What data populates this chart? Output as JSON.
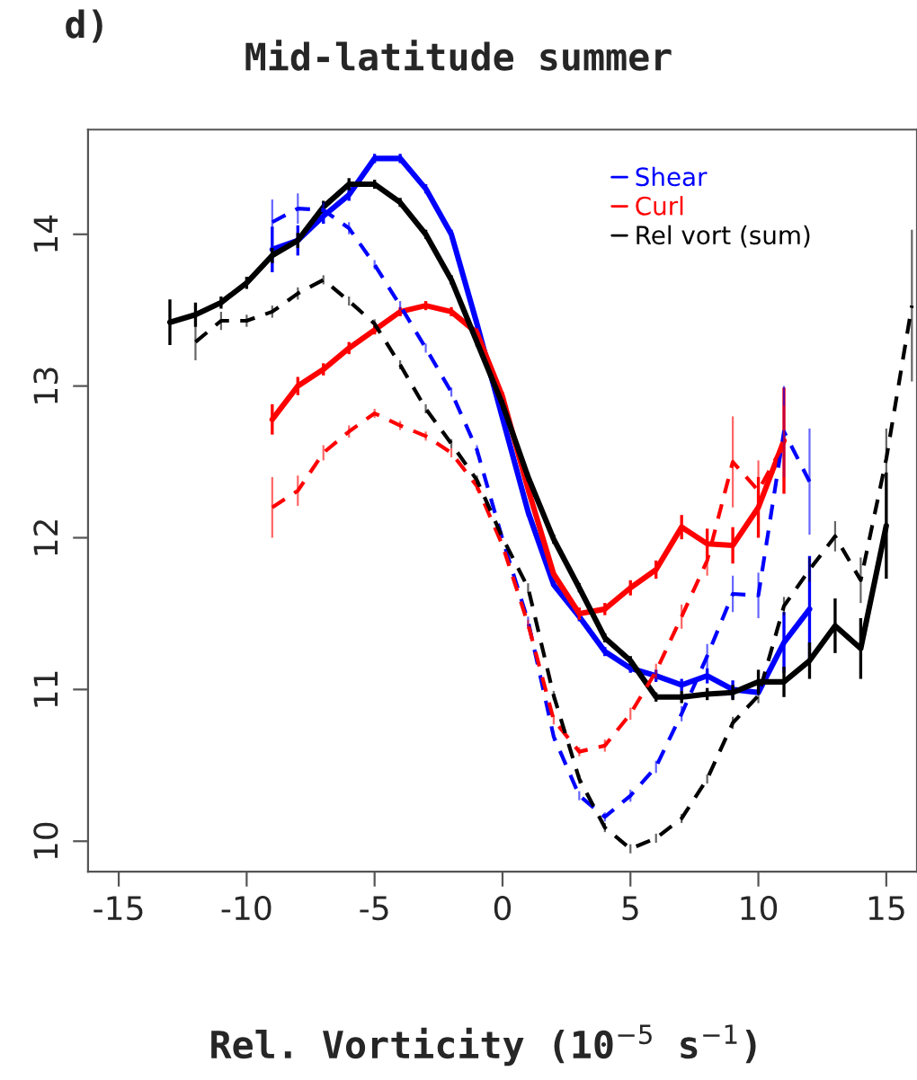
{
  "chart_data": {
    "type": "line",
    "title": "Mid-latitude summer",
    "subtitle": "d)",
    "xlabel": "Rel. Vorticity (10$^{−5}$ s$^{−1}$)",
    "xlim": [
      -16.2,
      16.2
    ],
    "ylim": [
      9.8,
      14.69
    ],
    "xticks": [
      -15,
      -10,
      -5,
      0,
      5,
      10,
      15
    ],
    "yticks": [
      10,
      11,
      12,
      13,
      14
    ],
    "grid": false,
    "legend": "top right",
    "marker": "none",
    "series": [
      {
        "name": "Shear",
        "color": "#0000ff",
        "line_style": "solid",
        "x": [
          -9,
          -8,
          -7,
          -6,
          -5,
          -4,
          -3,
          -2,
          -1,
          0,
          1,
          2,
          3,
          4,
          5,
          6,
          7,
          8,
          9,
          10,
          11,
          12
        ],
        "values": [
          13.9,
          13.96,
          14.12,
          14.26,
          14.5,
          14.5,
          14.3,
          14.0,
          13.41,
          12.79,
          12.17,
          11.69,
          11.48,
          11.25,
          11.14,
          11.09,
          11.03,
          11.09,
          11.0,
          10.98,
          11.31,
          11.53
        ],
        "errors": [
          0.15,
          0.1,
          0.05,
          0.04,
          0.03,
          0.03,
          0.03,
          0.03,
          0.03,
          0.03,
          0.03,
          null,
          0.03,
          0.03,
          0.03,
          0.04,
          0.04,
          0.05,
          0.06,
          null,
          0.2,
          0.35
        ]
      },
      {
        "name": "Curl",
        "color": "#ff0000",
        "line_style": "solid",
        "x": [
          -9,
          -8,
          -7,
          -6,
          -5,
          -4,
          -3,
          -2,
          -1,
          0,
          1,
          2,
          3,
          4,
          5,
          6,
          7,
          8,
          9,
          10,
          11
        ],
        "values": [
          12.78,
          13.0,
          13.11,
          13.25,
          13.37,
          13.49,
          13.53,
          13.49,
          13.35,
          12.93,
          12.32,
          11.76,
          11.5,
          11.53,
          11.67,
          11.79,
          12.07,
          11.96,
          11.95,
          12.2,
          12.64
        ],
        "errors": [
          0.1,
          0.06,
          0.04,
          0.04,
          0.03,
          0.03,
          0.03,
          0.03,
          0.03,
          0.03,
          0.03,
          null,
          0.04,
          0.04,
          0.05,
          0.06,
          0.08,
          0.1,
          0.12,
          0.2,
          0.35
        ]
      },
      {
        "name": "Rel vort (sum)",
        "color": "#000000",
        "line_style": "solid",
        "x": [
          -13,
          -12,
          -11,
          -10,
          -9,
          -8,
          -7,
          -6,
          -5,
          -4,
          -3,
          -2,
          -1,
          0,
          1,
          2,
          3,
          4,
          5,
          6,
          7,
          8,
          9,
          10,
          11,
          12,
          13,
          14,
          15
        ],
        "values": [
          13.42,
          13.47,
          13.55,
          13.68,
          13.86,
          13.96,
          14.18,
          14.33,
          14.33,
          14.21,
          14.0,
          13.7,
          13.29,
          12.88,
          12.4,
          11.99,
          11.67,
          11.34,
          11.19,
          10.95,
          10.95,
          10.97,
          10.98,
          11.05,
          11.05,
          11.19,
          11.42,
          11.27,
          12.08
        ],
        "errors": [
          0.15,
          0.08,
          0.04,
          0.04,
          0.05,
          0.05,
          0.04,
          0.04,
          0.03,
          0.03,
          0.03,
          0.03,
          0.03,
          0.03,
          0.03,
          0.03,
          0.03,
          0.03,
          0.03,
          0.03,
          0.04,
          0.04,
          0.05,
          0.08,
          0.1,
          0.12,
          0.18,
          0.2,
          0.35
        ]
      },
      {
        "color": "#0000ff",
        "line_style": "dashed",
        "x": [
          -9,
          -8,
          -7,
          -6,
          -5,
          -4,
          -3,
          -2,
          -1,
          0,
          1,
          2,
          3,
          4,
          5,
          6,
          7,
          8,
          9,
          10,
          11,
          12
        ],
        "values": [
          14.08,
          14.17,
          14.16,
          14.04,
          13.8,
          13.53,
          13.25,
          12.96,
          12.58,
          11.99,
          11.45,
          10.69,
          10.3,
          10.16,
          10.3,
          10.49,
          10.84,
          11.22,
          11.63,
          11.62,
          12.7,
          12.37
        ],
        "errors": [
          0.15,
          0.1,
          0.05,
          0.04,
          0.03,
          0.03,
          0.03,
          0.03,
          0.03,
          null,
          0.03,
          0.03,
          0.03,
          0.03,
          0.04,
          0.04,
          0.05,
          0.08,
          0.12,
          0.15,
          0.3,
          0.35
        ]
      },
      {
        "color": "#ff0000",
        "line_style": "dashed",
        "x": [
          -9,
          -8,
          -7,
          -6,
          -5,
          -4,
          -3,
          -2,
          -1,
          0,
          1,
          2,
          3,
          4,
          5,
          6,
          7,
          8,
          9,
          10,
          11
        ],
        "values": [
          12.2,
          12.31,
          12.56,
          12.7,
          12.82,
          12.74,
          12.67,
          12.56,
          12.34,
          11.95,
          11.43,
          10.8,
          10.59,
          10.63,
          10.84,
          11.12,
          11.48,
          11.85,
          12.5,
          12.31,
          12.62
        ],
        "errors": [
          0.2,
          0.1,
          0.05,
          0.04,
          0.03,
          0.03,
          0.03,
          0.03,
          0.03,
          null,
          0.03,
          0.03,
          0.03,
          0.04,
          0.04,
          0.05,
          0.08,
          0.1,
          0.3,
          0.2,
          0.25
        ]
      },
      {
        "color": "#000000",
        "line_style": "dashed",
        "x": [
          -12,
          -11,
          -10,
          -9,
          -8,
          -7,
          -6,
          -5,
          -4,
          -3,
          -2,
          -1,
          0,
          1,
          2,
          3,
          4,
          5,
          6,
          7,
          8,
          9,
          10,
          11,
          12,
          13,
          14,
          15,
          16
        ],
        "values": [
          13.29,
          13.43,
          13.43,
          13.49,
          13.61,
          13.7,
          13.56,
          13.41,
          13.14,
          12.85,
          12.62,
          12.38,
          12.0,
          11.67,
          10.96,
          10.41,
          10.09,
          9.95,
          10.02,
          10.15,
          10.41,
          10.78,
          10.96,
          11.55,
          11.79,
          12.01,
          11.72,
          12.52,
          13.53
        ],
        "errors": [
          0.12,
          0.06,
          0.04,
          0.04,
          0.04,
          0.03,
          0.03,
          0.03,
          0.03,
          0.03,
          0.03,
          0.03,
          null,
          0.03,
          0.03,
          0.03,
          0.03,
          0.03,
          0.03,
          0.03,
          0.03,
          0.04,
          0.05,
          0.06,
          0.08,
          0.1,
          0.15,
          0.2,
          0.5
        ]
      }
    ]
  }
}
